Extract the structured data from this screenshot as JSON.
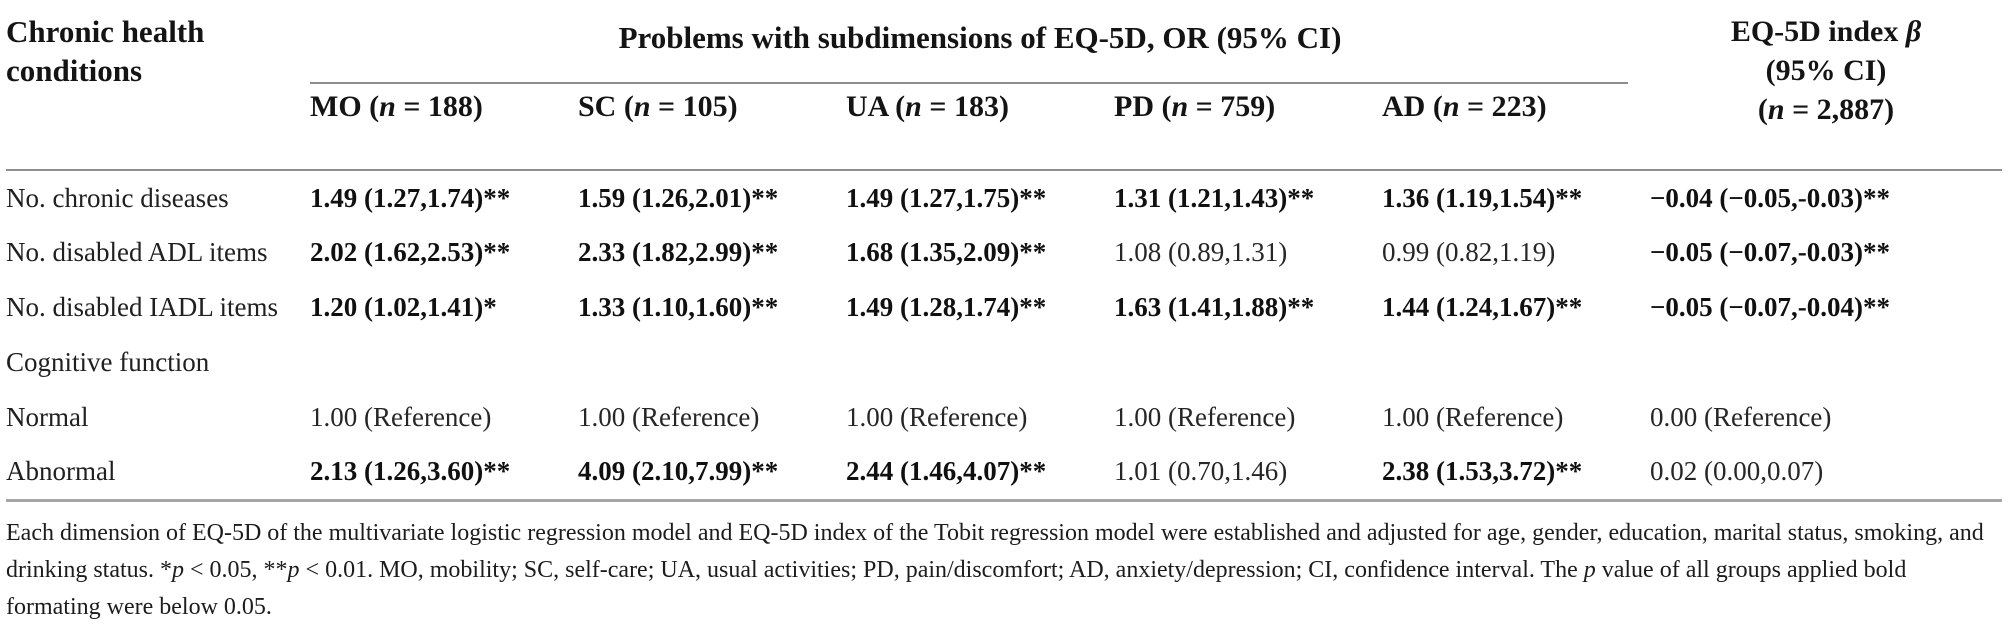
{
  "colors": {
    "background": "#ffffff",
    "text": "#1d1d1d",
    "rule_gray": "#8f8f8f",
    "bottom_rule_gray": "#a6a6a6"
  },
  "table": {
    "row_header": "Chronic health conditions",
    "span_header": "Problems with subdimensions of EQ-5D, OR (95% CI)",
    "subheaders": [
      [
        {
          "t": "MO (",
          "i": false
        },
        {
          "t": "n",
          "i": true
        },
        {
          "t": " = 188)",
          "i": false
        }
      ],
      [
        {
          "t": "SC (",
          "i": false
        },
        {
          "t": "n",
          "i": true
        },
        {
          "t": " = 105)",
          "i": false
        }
      ],
      [
        {
          "t": "UA (",
          "i": false
        },
        {
          "t": "n",
          "i": true
        },
        {
          "t": " = 183)",
          "i": false
        }
      ],
      [
        {
          "t": "PD (",
          "i": false
        },
        {
          "t": "n",
          "i": true
        },
        {
          "t": " = 759)",
          "i": false
        }
      ],
      [
        {
          "t": "AD (",
          "i": false
        },
        {
          "t": "n",
          "i": true
        },
        {
          "t": " = 223)",
          "i": false
        }
      ]
    ],
    "index_header": {
      "lines": [
        [
          {
            "t": "EQ-5D index ",
            "i": false
          },
          {
            "t": "β",
            "i": true
          }
        ],
        [
          {
            "t": "(95% CI)",
            "i": false
          }
        ],
        [
          {
            "t": "(",
            "i": false
          },
          {
            "t": "n",
            "i": true
          },
          {
            "t": " = 2,887)",
            "i": false
          }
        ]
      ]
    },
    "rows": [
      {
        "label": "No. chronic diseases",
        "cells": [
          {
            "text": "1.49 (1.27,1.74)**",
            "bold": true
          },
          {
            "text": "1.59 (1.26,2.01)**",
            "bold": true
          },
          {
            "text": "1.49 (1.27,1.75)**",
            "bold": true
          },
          {
            "text": "1.31 (1.21,1.43)**",
            "bold": true
          },
          {
            "text": "1.36 (1.19,1.54)**",
            "bold": true
          },
          {
            "text": "−0.04 (−0.05,-0.03)**",
            "bold": true
          }
        ]
      },
      {
        "label": "No. disabled ADL items",
        "cells": [
          {
            "text": "2.02 (1.62,2.53)**",
            "bold": true
          },
          {
            "text": "2.33 (1.82,2.99)**",
            "bold": true
          },
          {
            "text": "1.68 (1.35,2.09)**",
            "bold": true
          },
          {
            "text": "1.08 (0.89,1.31)",
            "bold": false
          },
          {
            "text": "0.99 (0.82,1.19)",
            "bold": false
          },
          {
            "text": "−0.05 (−0.07,-0.03)**",
            "bold": true
          }
        ]
      },
      {
        "label": "No. disabled IADL items",
        "cells": [
          {
            "text": "1.20 (1.02,1.41)*",
            "bold": true
          },
          {
            "text": "1.33 (1.10,1.60)**",
            "bold": true
          },
          {
            "text": "1.49 (1.28,1.74)**",
            "bold": true
          },
          {
            "text": "1.63 (1.41,1.88)**",
            "bold": true
          },
          {
            "text": "1.44 (1.24,1.67)**",
            "bold": true
          },
          {
            "text": "−0.05 (−0.07,-0.04)**",
            "bold": true
          }
        ]
      },
      {
        "label": "Cognitive function",
        "cells": [
          {
            "text": "",
            "bold": false
          },
          {
            "text": "",
            "bold": false
          },
          {
            "text": "",
            "bold": false
          },
          {
            "text": "",
            "bold": false
          },
          {
            "text": "",
            "bold": false
          },
          {
            "text": "",
            "bold": false
          }
        ]
      },
      {
        "label": "Normal",
        "cells": [
          {
            "text": "1.00 (Reference)",
            "bold": false
          },
          {
            "text": "1.00 (Reference)",
            "bold": false
          },
          {
            "text": "1.00 (Reference)",
            "bold": false
          },
          {
            "text": "1.00 (Reference)",
            "bold": false
          },
          {
            "text": "1.00 (Reference)",
            "bold": false
          },
          {
            "text": "0.00 (Reference)",
            "bold": false
          }
        ]
      },
      {
        "label": "Abnormal",
        "cells": [
          {
            "text": "2.13 (1.26,3.60)**",
            "bold": true
          },
          {
            "text": "4.09 (2.10,7.99)**",
            "bold": true
          },
          {
            "text": "2.44 (1.46,4.07)**",
            "bold": true
          },
          {
            "text": "1.01 (0.70,1.46)",
            "bold": false
          },
          {
            "text": "2.38 (1.53,3.72)**",
            "bold": true
          },
          {
            "text": "0.02 (0.00,0.07)",
            "bold": false
          }
        ]
      }
    ],
    "footnote": [
      {
        "t": "Each dimension of EQ-5D of the multivariate logistic regression model and EQ-5D index of the Tobit regression model were established and adjusted for age, gender, education, marital status, smoking, and drinking status. *",
        "i": false
      },
      {
        "t": "p",
        "i": true
      },
      {
        "t": " < 0.05, **",
        "i": false
      },
      {
        "t": "p",
        "i": true
      },
      {
        "t": " < 0.01. MO, mobility; SC, self-care; UA, usual activities; PD, pain/discomfort; AD, anxiety/depression; CI, confidence interval. The ",
        "i": false
      },
      {
        "t": "p",
        "i": true
      },
      {
        "t": " value of all groups applied bold formating were below 0.05.",
        "i": false
      }
    ]
  }
}
